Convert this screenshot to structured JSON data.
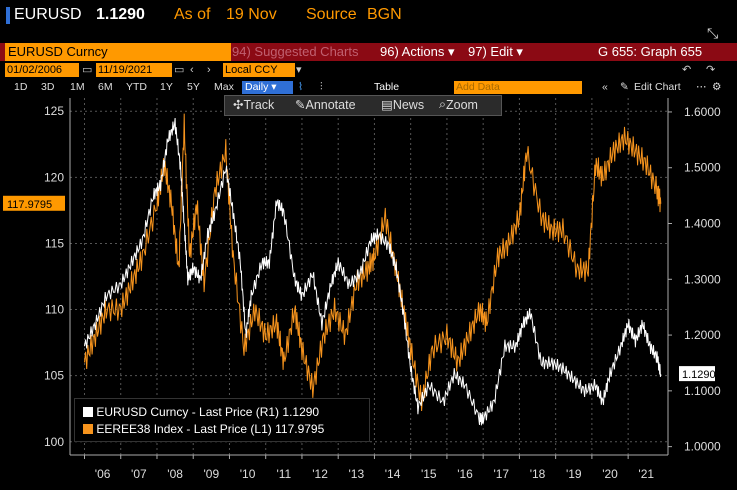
{
  "header": {
    "ticker": "EURUSD",
    "price": "1.1290",
    "as_of_label": "As of",
    "as_of_date": "19 Nov",
    "source_label": "Source",
    "source": "BGN"
  },
  "menu": {
    "security": "EURUSD Curncy",
    "suggested_charts": "94) Suggested Charts",
    "actions": "96) Actions",
    "edit": "97) Edit",
    "graph_label": "G 655: Graph 655"
  },
  "controls": {
    "start_date": "01/02/2006",
    "end_date": "11/19/2021",
    "currency": "Local CCY",
    "periods": [
      "1D",
      "3D",
      "1M",
      "6M",
      "YTD",
      "1Y",
      "5Y",
      "Max"
    ],
    "frequency": "Daily",
    "table_label": "Table",
    "add_data_placeholder": "Add Data",
    "edit_chart": "Edit Chart"
  },
  "toolbar": {
    "track": "Track",
    "annotate": "Annotate",
    "news": "News",
    "zoom": "Zoom"
  },
  "colors": {
    "eurusd": "#ffffff",
    "eeree38": "#f7941d",
    "orange_box": "#ff9900",
    "red_bar": "#8b0a14",
    "accent_blue": "#2f6fd6"
  },
  "chart_data": {
    "type": "line",
    "x_range": [
      2005.6,
      2022.1
    ],
    "x_ticks": [
      "'06",
      "'07",
      "'08",
      "'09",
      "'10",
      "'11",
      "'12",
      "'13",
      "'14",
      "'15",
      "'16",
      "'17",
      "'18",
      "'19",
      "'20",
      "'21"
    ],
    "left_axis": {
      "ticks": [
        "125",
        "120",
        "115",
        "110",
        "105",
        "100"
      ],
      "range": [
        99,
        126
      ],
      "last_value_label": "117.9795"
    },
    "right_axis": {
      "ticks": [
        "1.6000",
        "1.5000",
        "1.4000",
        "1.3000",
        "1.2000",
        "1.1000",
        "1.0000"
      ],
      "range": [
        0.985,
        1.625
      ],
      "last_value_label": "1.1290"
    },
    "series": [
      {
        "name": "EURUSD Curncy - Last Price (R1)",
        "legend": "EURUSD Curncy - Last Price (R1)",
        "last": "1.1290",
        "axis": "right",
        "x": [
          2006.0,
          2006.3,
          2006.6,
          2007.0,
          2007.3,
          2007.6,
          2007.9,
          2008.1,
          2008.3,
          2008.5,
          2008.65,
          2008.75,
          2008.85,
          2009.0,
          2009.2,
          2009.4,
          2009.6,
          2009.9,
          2010.1,
          2010.3,
          2010.45,
          2010.6,
          2010.9,
          2011.1,
          2011.3,
          2011.5,
          2011.8,
          2012.0,
          2012.3,
          2012.55,
          2012.8,
          2013.0,
          2013.3,
          2013.6,
          2013.9,
          2014.1,
          2014.4,
          2014.6,
          2014.8,
          2015.0,
          2015.2,
          2015.5,
          2015.9,
          2016.2,
          2016.5,
          2016.9,
          2017.0,
          2017.3,
          2017.6,
          2017.9,
          2018.1,
          2018.3,
          2018.6,
          2018.9,
          2019.2,
          2019.5,
          2019.8,
          2020.1,
          2020.3,
          2020.5,
          2020.8,
          2021.0,
          2021.2,
          2021.4,
          2021.6,
          2021.8,
          2021.9
        ],
        "y": [
          1.18,
          1.22,
          1.27,
          1.29,
          1.33,
          1.37,
          1.45,
          1.47,
          1.55,
          1.58,
          1.5,
          1.4,
          1.3,
          1.32,
          1.3,
          1.38,
          1.42,
          1.5,
          1.42,
          1.33,
          1.2,
          1.27,
          1.33,
          1.33,
          1.44,
          1.42,
          1.3,
          1.27,
          1.31,
          1.22,
          1.29,
          1.33,
          1.29,
          1.31,
          1.37,
          1.38,
          1.36,
          1.32,
          1.24,
          1.14,
          1.07,
          1.11,
          1.08,
          1.13,
          1.11,
          1.05,
          1.05,
          1.08,
          1.18,
          1.18,
          1.22,
          1.24,
          1.15,
          1.15,
          1.14,
          1.12,
          1.1,
          1.11,
          1.08,
          1.13,
          1.18,
          1.22,
          1.19,
          1.22,
          1.18,
          1.16,
          1.13
        ]
      },
      {
        "name": "EEREE38 Index - Last Price (L1)",
        "legend": "EEREE38 Index - Last Price (L1)",
        "last": "117.9795",
        "axis": "left",
        "x": [
          2006.0,
          2006.3,
          2006.6,
          2007.0,
          2007.3,
          2007.6,
          2008.0,
          2008.2,
          2008.4,
          2008.6,
          2008.75,
          2008.9,
          2009.1,
          2009.3,
          2009.6,
          2009.9,
          2010.1,
          2010.4,
          2010.7,
          2011.0,
          2011.3,
          2011.5,
          2011.8,
          2012.0,
          2012.3,
          2012.6,
          2012.9,
          2013.2,
          2013.5,
          2013.8,
          2014.0,
          2014.3,
          2014.6,
          2014.8,
          2015.0,
          2015.3,
          2015.6,
          2016.0,
          2016.3,
          2016.6,
          2016.9,
          2017.1,
          2017.4,
          2017.7,
          2018.0,
          2018.2,
          2018.6,
          2018.9,
          2019.2,
          2019.6,
          2019.9,
          2020.1,
          2020.3,
          2020.6,
          2020.9,
          2021.2,
          2021.5,
          2021.8,
          2021.9
        ],
        "y": [
          106,
          108,
          110,
          110,
          112,
          114,
          118,
          121,
          118,
          113,
          124,
          114,
          118,
          112,
          119,
          122,
          114,
          107,
          110,
          108,
          109,
          106,
          110,
          107,
          104,
          108,
          110,
          108,
          112,
          113,
          114,
          117,
          113,
          110,
          107,
          103,
          107,
          108,
          106,
          108,
          110,
          109,
          114,
          115,
          117,
          122,
          117,
          116,
          116,
          113,
          113,
          121,
          120,
          122,
          123,
          122,
          121,
          119,
          118
        ]
      }
    ]
  }
}
